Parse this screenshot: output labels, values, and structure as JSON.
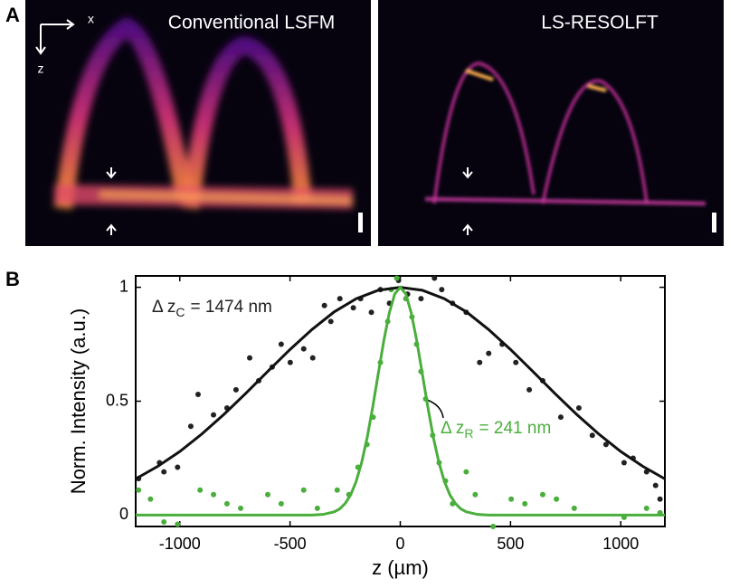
{
  "panel_labels": [
    "A",
    "B"
  ],
  "image_panels": [
    {
      "title": "Conventional LSFM"
    },
    {
      "title": "LS-RESOLFT"
    }
  ],
  "axes_indicator": {
    "x": "x",
    "z": "z"
  },
  "chart_data": {
    "type": "scatter",
    "xlabel": "z (µm)",
    "ylabel": "Norm. Intensity (a.u.)",
    "xlim": [
      -1200,
      1200
    ],
    "xticks": [
      -1000,
      -500,
      0,
      500,
      1000
    ],
    "ylim": [
      -0.05,
      1.05
    ],
    "yticks": [
      0,
      0.5,
      1
    ],
    "annotations": [
      {
        "text": "Δ z",
        "sub": "C",
        "rest": "= 1474 nm",
        "color": "#222222"
      },
      {
        "text": "Δ z",
        "sub": "R",
        "rest": "= 241 nm",
        "color": "#4aae3c"
      }
    ],
    "series": [
      {
        "type": "scatter",
        "color": "#222222",
        "x": [
          -1187,
          -1092,
          -1072,
          -1010,
          -950,
          -917,
          -847,
          -786,
          -745,
          -683,
          -642,
          -581,
          -540,
          -499,
          -438,
          -397,
          -344,
          -315,
          -274,
          -213,
          -180,
          -131,
          -90,
          -49,
          -8,
          33,
          94,
          155,
          188,
          237,
          299,
          360,
          401,
          462,
          524,
          585,
          646,
          728,
          810,
          871,
          933,
          1015,
          1056,
          1117,
          1158,
          1178
        ],
        "values": [
          0.16,
          0.23,
          0.19,
          0.21,
          0.39,
          0.53,
          0.44,
          0.47,
          0.55,
          0.69,
          0.59,
          0.65,
          0.75,
          0.67,
          0.73,
          0.69,
          0.92,
          0.85,
          0.95,
          0.91,
          0.95,
          0.89,
          0.99,
          0.93,
          1.03,
          0.97,
          0.95,
          1.04,
          0.99,
          0.93,
          0.89,
          0.67,
          0.71,
          0.75,
          0.67,
          0.55,
          0.59,
          0.43,
          0.47,
          0.35,
          0.31,
          0.23,
          0.25,
          0.19,
          0.13,
          0.07
        ]
      },
      {
        "type": "scatter",
        "color": "#4aae3c",
        "x": [
          -1187,
          -1133,
          -1072,
          -1010,
          -908,
          -847,
          -786,
          -724,
          -601,
          -540,
          -438,
          -376,
          -286,
          -233,
          -192,
          -151,
          -123,
          -90,
          -57,
          -41,
          -16,
          25,
          53,
          74,
          94,
          115,
          147,
          176,
          205,
          237,
          299,
          340,
          421,
          503,
          565,
          646,
          708,
          789,
          1015,
          1117,
          1178
        ],
        "values": [
          0.11,
          0.07,
          -0.03,
          -0.04,
          0.11,
          0.09,
          0.05,
          0.03,
          0.09,
          0.05,
          0.11,
          0.03,
          0.11,
          0.09,
          0.21,
          0.31,
          0.43,
          0.67,
          0.85,
          0.99,
          1.04,
          0.95,
          0.87,
          0.75,
          0.63,
          0.51,
          0.35,
          0.23,
          0.15,
          0.05,
          0.19,
          0.09,
          -0.05,
          0.07,
          0.05,
          0.09,
          0.07,
          0.03,
          -0.01,
          0.03,
          0.01
        ]
      },
      {
        "type": "line",
        "color": "#111111",
        "x": [
          -1200,
          -1100,
          -1000,
          -900,
          -800,
          -700,
          -600,
          -500,
          -400,
          -300,
          -200,
          -100,
          0,
          100,
          200,
          300,
          400,
          500,
          600,
          700,
          800,
          900,
          1000,
          1100,
          1200
        ],
        "values": [
          0.159,
          0.214,
          0.279,
          0.356,
          0.442,
          0.535,
          0.632,
          0.727,
          0.815,
          0.892,
          0.95,
          0.987,
          1,
          0.987,
          0.95,
          0.892,
          0.815,
          0.727,
          0.632,
          0.535,
          0.442,
          0.356,
          0.279,
          0.214,
          0.159
        ]
      },
      {
        "type": "line",
        "color": "#4aae3c",
        "x": [
          -1200,
          -400,
          -350,
          -300,
          -275,
          -250,
          -225,
          -200,
          -175,
          -150,
          -125,
          -100,
          -75,
          -50,
          -25,
          0,
          25,
          50,
          75,
          100,
          125,
          150,
          175,
          200,
          225,
          250,
          275,
          300,
          350,
          400,
          1200
        ],
        "values": [
          0,
          0,
          0.003,
          0.014,
          0.027,
          0.051,
          0.089,
          0.148,
          0.232,
          0.341,
          0.474,
          0.62,
          0.764,
          0.887,
          0.971,
          1,
          0.971,
          0.887,
          0.764,
          0.62,
          0.474,
          0.341,
          0.232,
          0.148,
          0.089,
          0.051,
          0.027,
          0.014,
          0.003,
          0,
          0
        ]
      }
    ]
  }
}
